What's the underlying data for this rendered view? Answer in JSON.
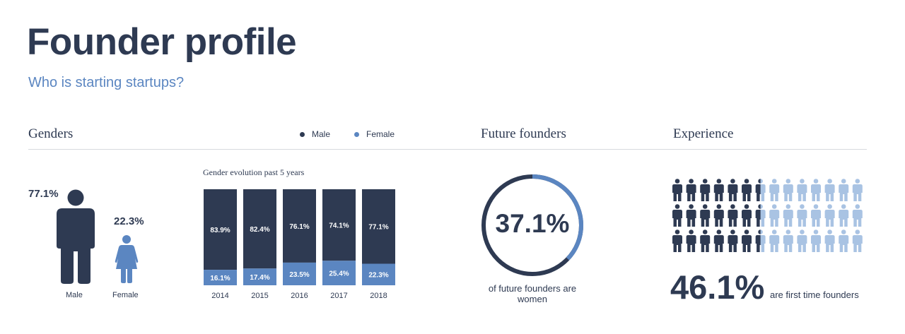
{
  "page": {
    "title": "Founder profile",
    "subtitle": "Who is starting startups?"
  },
  "sections": {
    "genders": "Genders",
    "future": "Future founders",
    "experience": "Experience"
  },
  "legend": [
    {
      "label": "Male",
      "color": "#2e3a52"
    },
    {
      "label": "Female",
      "color": "#5b86c1"
    }
  ],
  "colors": {
    "male": "#2e3a52",
    "female": "#5b86c1",
    "light": "#a9c3e3",
    "track": "#2e3a52"
  },
  "gender_figures": {
    "male": {
      "pct": "77.1%",
      "label": "Male",
      "icon": "male-person-icon"
    },
    "female": {
      "pct": "22.3%",
      "label": "Female",
      "icon": "female-person-icon"
    }
  },
  "chart_data": [
    {
      "type": "bar",
      "title": "Gender evolution past 5 years",
      "categories": [
        "2014",
        "2015",
        "2016",
        "2017",
        "2018"
      ],
      "series": [
        {
          "name": "Male",
          "values": [
            83.9,
            82.4,
            76.1,
            74.1,
            77.1
          ],
          "labels": [
            "83.9%",
            "82.4%",
            "76.1%",
            "74.1%",
            "77.1%"
          ]
        },
        {
          "name": "Female",
          "values": [
            16.1,
            17.4,
            23.5,
            25.4,
            22.3
          ],
          "labels": [
            "16.1%",
            "17.4%",
            "23.5%",
            "25.4%",
            "22.3%"
          ]
        }
      ],
      "stacked": true,
      "ylim": [
        0,
        100
      ]
    },
    {
      "type": "pie",
      "variant": "donut",
      "value": 37.1,
      "center_label": "37.1%",
      "caption": "of future founders are women"
    }
  ],
  "experience": {
    "value": 46.1,
    "value_label": "46.1%",
    "caption": "are first time founders",
    "icon": "person-icon"
  }
}
